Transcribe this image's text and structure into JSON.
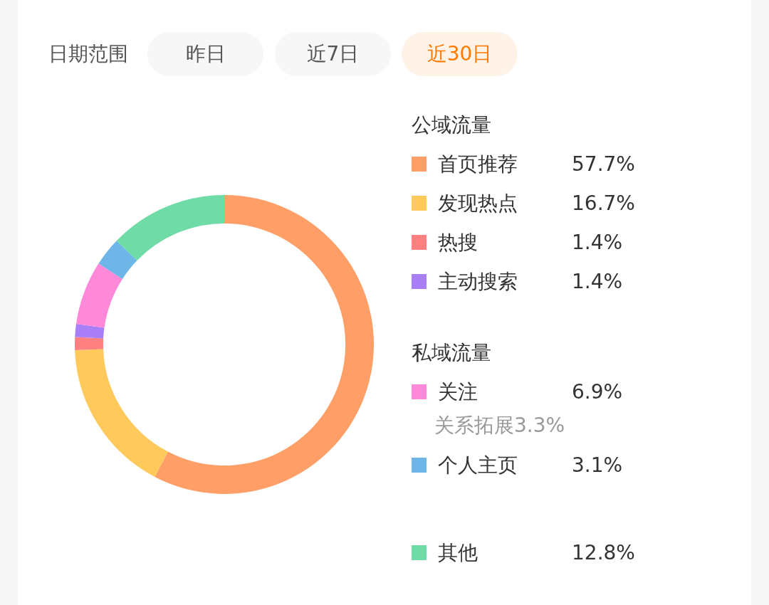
{
  "chart_data": {
    "type": "donut",
    "categories": [
      "首页推荐",
      "发现热点",
      "热搜",
      "主动搜索",
      "关注",
      "个人主页",
      "其他"
    ],
    "values": [
      57.7,
      16.7,
      1.4,
      1.4,
      6.9,
      3.1,
      12.8
    ],
    "colors": [
      "#ff9f67",
      "#ffc95c",
      "#ff8080",
      "#a87ff7",
      "#ff88d8",
      "#6eb5e8",
      "#6fdba6"
    ],
    "value_labels": [
      "57.7%",
      "16.7%",
      "1.4%",
      "1.4%",
      "6.9%",
      "3.1%",
      "12.8%"
    ],
    "legend": "right",
    "annotations": [
      "日期范围",
      "昨日",
      "近7日",
      "近30日",
      "公域流量",
      "私域流量",
      "关系拓展3.3%"
    ]
  }
}
